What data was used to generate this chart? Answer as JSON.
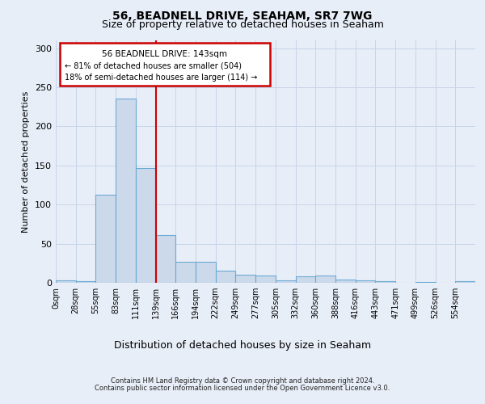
{
  "title1": "56, BEADNELL DRIVE, SEAHAM, SR7 7WG",
  "title2": "Size of property relative to detached houses in Seaham",
  "xlabel": "Distribution of detached houses by size in Seaham",
  "ylabel": "Number of detached properties",
  "footer1": "Contains HM Land Registry data © Crown copyright and database right 2024.",
  "footer2": "Contains public sector information licensed under the Open Government Licence v3.0.",
  "bin_labels": [
    "0sqm",
    "28sqm",
    "55sqm",
    "83sqm",
    "111sqm",
    "139sqm",
    "166sqm",
    "194sqm",
    "222sqm",
    "249sqm",
    "277sqm",
    "305sqm",
    "332sqm",
    "360sqm",
    "388sqm",
    "416sqm",
    "443sqm",
    "471sqm",
    "499sqm",
    "526sqm",
    "554sqm"
  ],
  "bar_heights": [
    3,
    2,
    113,
    236,
    147,
    61,
    27,
    27,
    15,
    10,
    9,
    3,
    8,
    9,
    4,
    3,
    2,
    0,
    1,
    0,
    2
  ],
  "bar_color": "#ccd9ea",
  "bar_edge_color": "#6aaad4",
  "vline_x": 5.0,
  "property_line_label": "56 BEADNELL DRIVE: 143sqm",
  "annotation_line2": "← 81% of detached houses are smaller (504)",
  "annotation_line3": "18% of semi-detached houses are larger (114) →",
  "annotation_box_edge": "#cc0000",
  "vline_color": "#cc0000",
  "grid_color": "#c8d4e8",
  "ylim": [
    0,
    310
  ],
  "yticks": [
    0,
    50,
    100,
    150,
    200,
    250,
    300
  ],
  "background_color": "#e8eef8",
  "title1_fontsize": 10,
  "title2_fontsize": 9,
  "ylabel_fontsize": 8,
  "xlabel_fontsize": 9,
  "tick_fontsize": 7,
  "footer_fontsize": 6
}
